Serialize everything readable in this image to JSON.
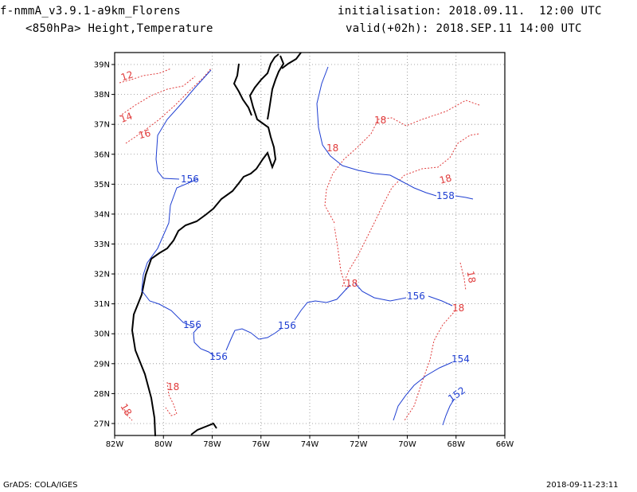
{
  "header": {
    "model": "f-nmmA_v3.9.1-a9km_Florens",
    "product": "<850hPa> Height,Temperature",
    "init": "initialisation: 2018.09.11.  12:00 UTC",
    "valid": "valid(+02h): 2018.SEP.11 14:00 UTC"
  },
  "axes": {
    "lon_labels": [
      "82W",
      "80W",
      "78W",
      "76W",
      "74W",
      "72W",
      "70W",
      "68W",
      "66W"
    ],
    "lat_labels": [
      "39N",
      "38N",
      "37N",
      "36N",
      "35N",
      "34N",
      "33N",
      "32N",
      "31N",
      "30N",
      "29N",
      "28N",
      "27N"
    ]
  },
  "map_data": {
    "lon_range": [
      -82,
      -66
    ],
    "lat_range": [
      26.6,
      39.4
    ],
    "gridlines": true,
    "height_color": "#1f3fd2",
    "temperature_color": "#e03a3a",
    "height_contour_labels": [
      "156",
      "158",
      "156",
      "156",
      "156",
      "156",
      "154",
      "152"
    ],
    "temperature_contour_labels": [
      "12",
      "14",
      "16",
      "18",
      "18",
      "18",
      "18",
      "18",
      "18",
      "18",
      "18"
    ]
  },
  "footer": {
    "left": "GrADS: COLA/IGES",
    "right": "2018-09-11-23:11"
  }
}
